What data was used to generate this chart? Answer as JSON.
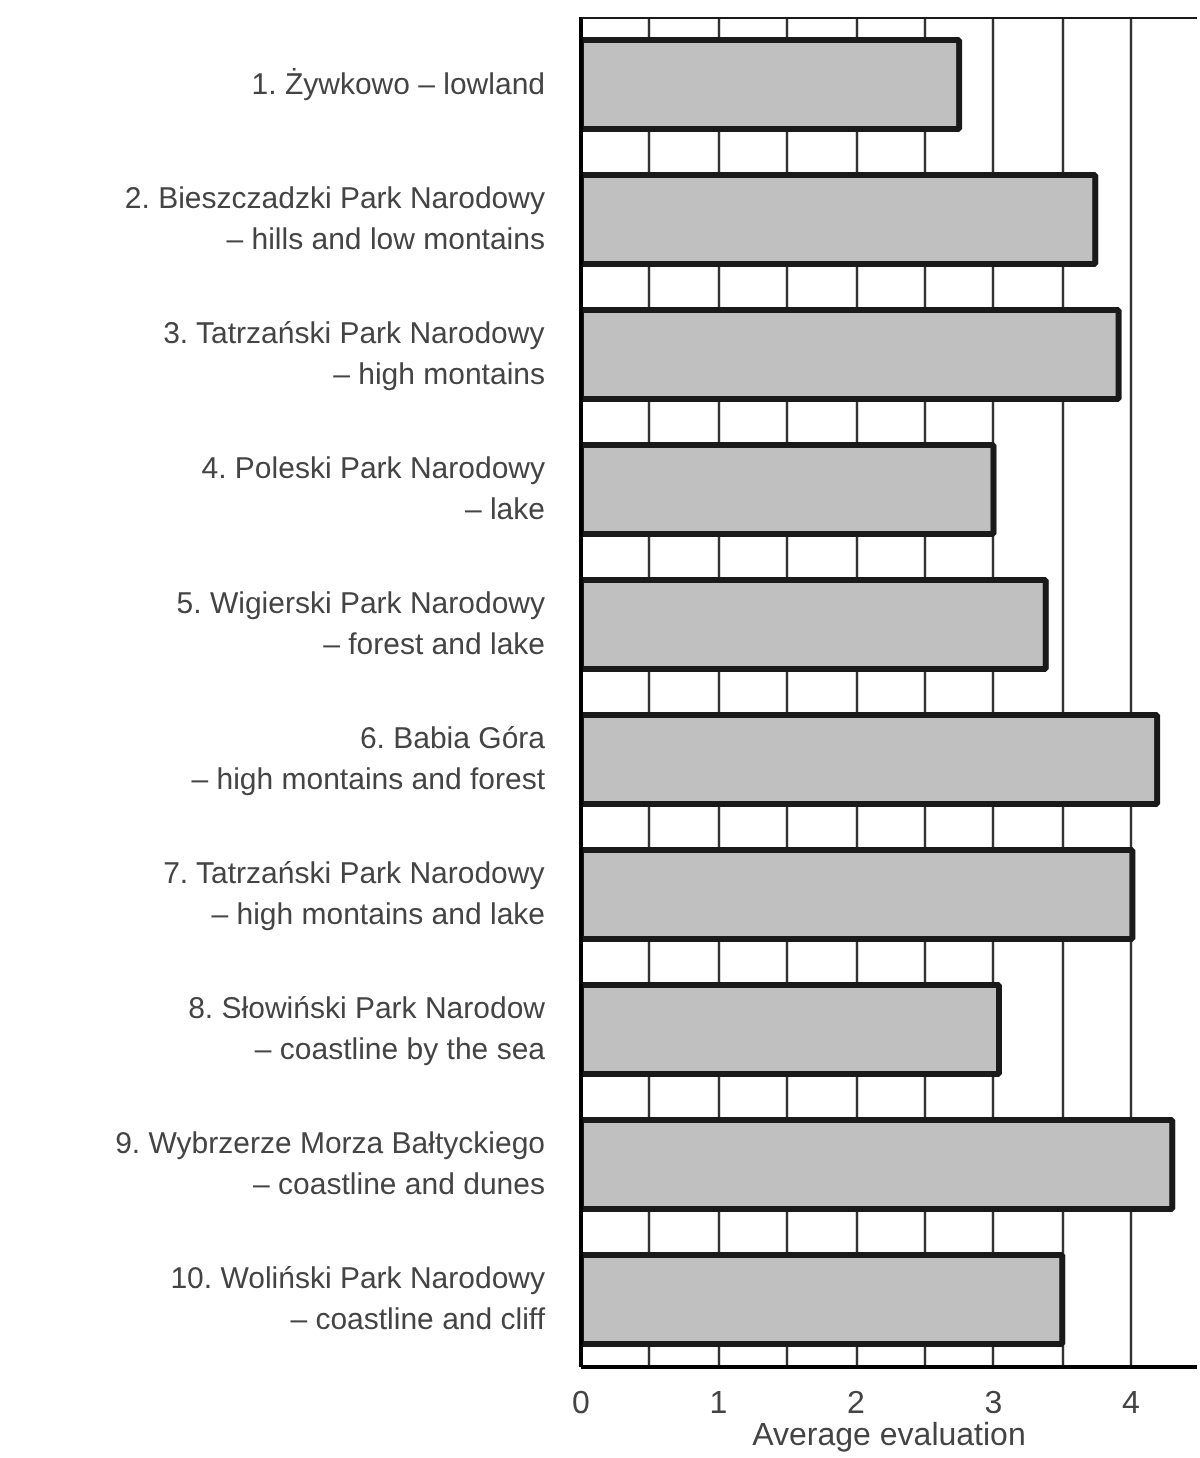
{
  "chart_data": {
    "type": "bar",
    "orientation": "horizontal",
    "xlabel": "Average evaluation",
    "categories": [
      "1. Żywkowo – lowland",
      "2. Bieszczadzki Park Narodowy\n– hills and low montains",
      "3. Tatrzański Park Narodowy\n– high montains",
      "4. Poleski Park Narodowy\n– lake",
      "5. Wigierski Park Narodowy\n– forest and lake",
      "6. Babia Góra\n– high montains and forest",
      "7. Tatrzański Park Narodowy\n– high montains and lake",
      "8. Słowiński Park Narodow\n– coastline by the sea",
      "9. Wybrzerze Morza Bałtyckiego\n– coastline and dunes",
      "10. Woliński Park Narodowy\n– coastline and cliff"
    ],
    "values": [
      2.75,
      3.74,
      3.91,
      3.0,
      3.38,
      4.19,
      4.01,
      3.04,
      4.3,
      3.5
    ],
    "color": "#c0c0c0",
    "xlim": [
      0,
      4.48
    ],
    "xticks": [
      0,
      {
        "value": 0.5,
        "label": null
      },
      1,
      {
        "value": 1.5,
        "label": null
      },
      2,
      {
        "value": 2.5,
        "label": null
      },
      3,
      {
        "value": 3.5,
        "label": null
      },
      4
    ],
    "grid": "x"
  }
}
